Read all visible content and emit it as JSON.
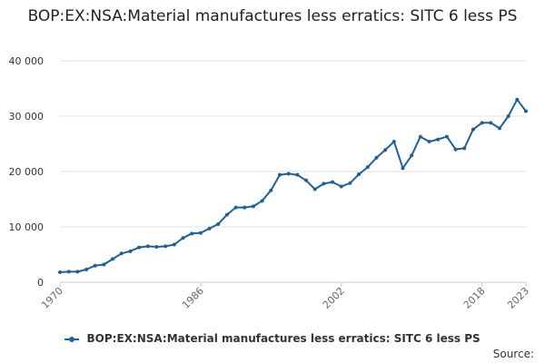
{
  "chart_data": {
    "type": "line",
    "title": "BOP:EX:NSA:Material manufactures less erratics: SITC 6 less PS",
    "xlabel": "",
    "ylabel": "",
    "ylim": [
      0,
      40000
    ],
    "yticks": [
      0,
      10000,
      20000,
      30000,
      40000
    ],
    "ytick_labels": [
      "0",
      "10 000",
      "20 000",
      "30 000",
      "40 000"
    ],
    "xlim": [
      1970,
      2023
    ],
    "xticks": [
      1970,
      1986,
      2002,
      2018,
      2023
    ],
    "xtick_labels": [
      "1970",
      "1986",
      "2002",
      "2018",
      "2023"
    ],
    "grid": "horizontal",
    "legend_position": "bottom",
    "series_color": "#206095",
    "series": [
      {
        "name": "BOP:EX:NSA:Material manufactures less erratics: SITC 6 less PS",
        "x": [
          1970,
          1971,
          1972,
          1973,
          1974,
          1975,
          1976,
          1977,
          1978,
          1979,
          1980,
          1981,
          1982,
          1983,
          1984,
          1985,
          1986,
          1987,
          1988,
          1989,
          1990,
          1991,
          1992,
          1993,
          1994,
          1995,
          1996,
          1997,
          1998,
          1999,
          2000,
          2001,
          2002,
          2003,
          2004,
          2005,
          2006,
          2007,
          2008,
          2009,
          2010,
          2011,
          2012,
          2013,
          2014,
          2015,
          2016,
          2017,
          2018,
          2019,
          2020,
          2021,
          2022,
          2023
        ],
        "values": [
          1800,
          1900,
          1900,
          2300,
          3000,
          3200,
          4200,
          5200,
          5600,
          6300,
          6500,
          6400,
          6500,
          6800,
          8000,
          8800,
          8900,
          9700,
          10500,
          12200,
          13500,
          13500,
          13700,
          14700,
          16600,
          19400,
          19600,
          19400,
          18400,
          16800,
          17800,
          18100,
          17300,
          17900,
          19500,
          20800,
          22500,
          23900,
          25400,
          20600,
          22900,
          26300,
          25400,
          25800,
          26300,
          24000,
          24200,
          27600,
          28800,
          28800,
          27800,
          30000,
          33000,
          30900
        ]
      }
    ],
    "source_label": "Source:"
  }
}
